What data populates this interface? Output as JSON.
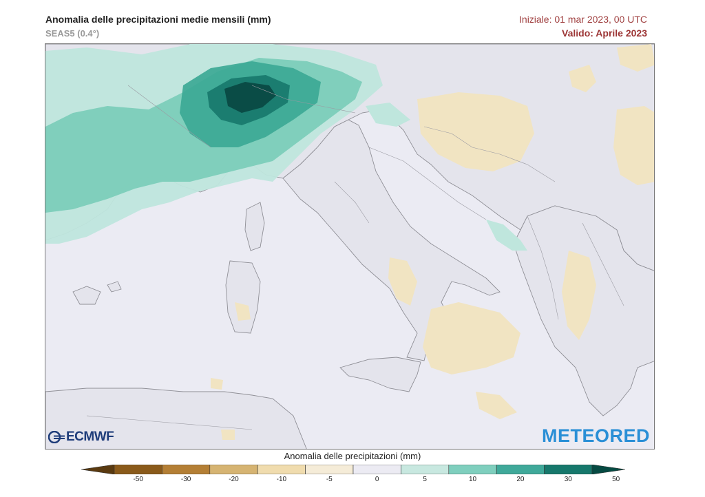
{
  "header": {
    "title": "Anomalia delle precipitazioni medie mensili (mm)",
    "subtitle": "SEAS5 (0.4°)",
    "initial": "Iniziale: 01 mar 2023, 00 UTC",
    "valid": "Valido: Aprile 2023"
  },
  "logos": {
    "left": "ECMWF",
    "right": "METEORED"
  },
  "legend": {
    "title": "Anomalia delle precipitazioni (mm)",
    "ticks": [
      "-50",
      "-30",
      "-20",
      "-10",
      "-5",
      "0",
      "5",
      "10",
      "20",
      "30",
      "50"
    ],
    "colors": [
      "#5a3a10",
      "#8a5a1a",
      "#b47f35",
      "#d6b472",
      "#f0dcae",
      "#f5ecd8",
      "#ecebf3",
      "#c8e8e0",
      "#7fcfbe",
      "#3fa99a",
      "#16786c",
      "#064a42"
    ]
  },
  "colors": {
    "sea": "#eaeaf2",
    "land": "#e6e6ee",
    "wet_light": "#bfe6dd",
    "wet_mid": "#7ccdb9",
    "wet_strong": "#3aa794",
    "wet_darker": "#18786d",
    "wet_darkest": "#0a4a43",
    "dry_light": "#f1e4c2"
  }
}
